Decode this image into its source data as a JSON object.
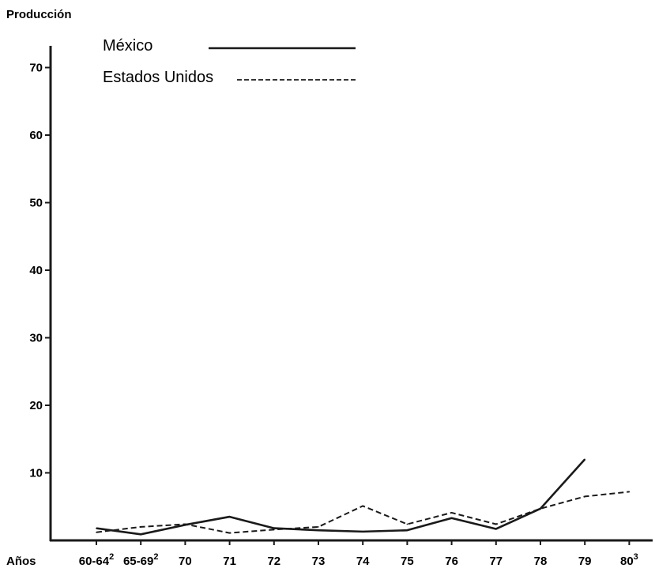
{
  "chart_data": {
    "type": "line",
    "ylabel": "Producción",
    "xlabel": "Años",
    "categories": [
      {
        "label": "60-64",
        "sup": "2"
      },
      {
        "label": "65-69",
        "sup": "2"
      },
      {
        "label": "70",
        "sup": ""
      },
      {
        "label": "71",
        "sup": ""
      },
      {
        "label": "72",
        "sup": ""
      },
      {
        "label": "73",
        "sup": ""
      },
      {
        "label": "74",
        "sup": ""
      },
      {
        "label": "75",
        "sup": ""
      },
      {
        "label": "76",
        "sup": ""
      },
      {
        "label": "77",
        "sup": ""
      },
      {
        "label": "78",
        "sup": ""
      },
      {
        "label": "79",
        "sup": ""
      },
      {
        "label": "80",
        "sup": "3"
      }
    ],
    "yticks": [
      10,
      20,
      30,
      40,
      50,
      60,
      70
    ],
    "ylim": [
      0,
      73
    ],
    "series": [
      {
        "name": "México",
        "style": "solid",
        "values": [
          1.8,
          0.9,
          2.3,
          3.5,
          1.8,
          1.5,
          1.3,
          1.5,
          3.3,
          1.7,
          4.7,
          12.0,
          null
        ]
      },
      {
        "name": "Estados Unidos",
        "style": "dashed",
        "values": [
          1.2,
          2.0,
          2.4,
          1.1,
          1.6,
          2.0,
          5.1,
          2.4,
          4.1,
          2.4,
          4.7,
          6.5,
          7.2
        ]
      }
    ],
    "colors": {
      "line": "#1a1a1a",
      "axis": "#1a1a1a"
    }
  }
}
